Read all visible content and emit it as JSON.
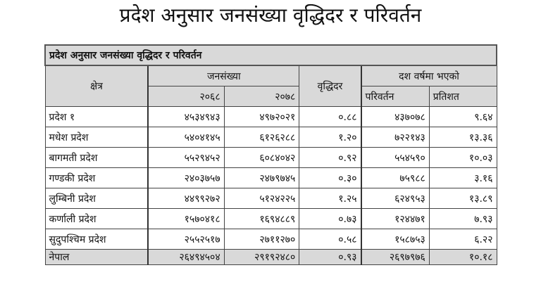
{
  "page_title": "प्रदेश अनुसार जनसंख्या वृद्धिदर र परिवर्तन",
  "table": {
    "caption": "प्रदेश अनुसार जनसंख्या वृद्धिदर र परिवर्तन",
    "headers": {
      "region": "क्षेत्र",
      "population": "जनसंख्या",
      "year1": "२०६८",
      "year2": "२०७८",
      "growth_rate": "वृद्धिदर",
      "ten_year": "दश वर्षमा भएको",
      "change": "परिवर्तन",
      "percent": "प्रतिशत"
    },
    "rows": [
      {
        "region": "प्रदेश १",
        "pop2068": "४५३४९४३",
        "pop2078": "४९७२०२१",
        "growth": "०.८८",
        "change": "४३७०७८",
        "percent": "९.६४"
      },
      {
        "region": "मधेश प्रदेश",
        "pop2068": "५४०४१४५",
        "pop2078": "६१२६२८८",
        "growth": "१.२०",
        "change": "७२२१४३",
        "percent": "१३.३६"
      },
      {
        "region": "बागमती प्रदेश",
        "pop2068": "५५२९४५२",
        "pop2078": "६०८४०४२",
        "growth": "०.९२",
        "change": "५५४५९०",
        "percent": "१०.०३"
      },
      {
        "region": "गण्डकी प्रदेश",
        "pop2068": "२४०३७५७",
        "pop2078": "२४७९७४५",
        "growth": "०.३०",
        "change": "७५९८८",
        "percent": "३.१६"
      },
      {
        "region": "लुम्बिनी प्रदेश",
        "pop2068": "४४९९२७२",
        "pop2078": "५१२४२२५",
        "growth": "१.२५",
        "change": "६२४९५३",
        "percent": "१३.८९"
      },
      {
        "region": "कर्णाली प्रदेश",
        "pop2068": "१५७०४१८",
        "pop2078": "१६९४८८९",
        "growth": "०.७३",
        "change": "१२४४७१",
        "percent": "७.९३"
      },
      {
        "region": "सुदुपश्चिम प्रदेश",
        "pop2068": "२५५२५१७",
        "pop2078": "२७११२७०",
        "growth": "०.५८",
        "change": "१५८७५३",
        "percent": "६.२२"
      }
    ],
    "total": {
      "region": "नेपाल",
      "pop2068": "२६४९४५०४",
      "pop2078": "२९१९२४८०",
      "growth": "०.९३",
      "change": "२६९७९७६",
      "percent": "१०.१८"
    }
  }
}
